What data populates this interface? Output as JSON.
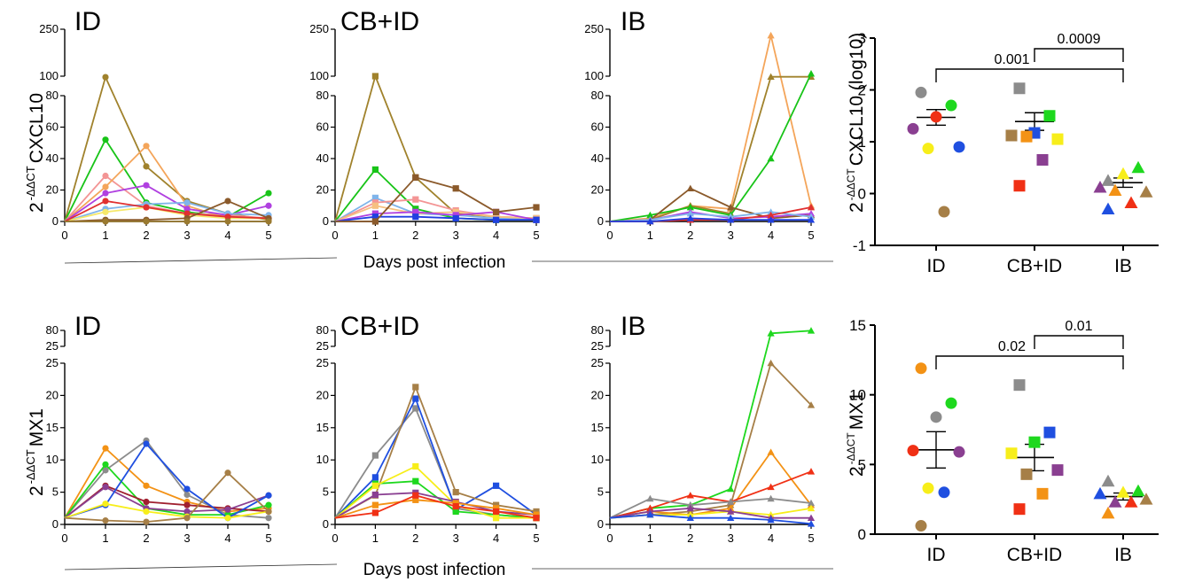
{
  "figure": {
    "xlabel": "Days post infection",
    "ylabel_top_prefix": "2",
    "ylabel_top_sup": "-ΔΔCT",
    "ylabel_top_gene": "CXCL10",
    "ylabel_bottom_gene": "MX1",
    "scatter_top_ylabel_suffix": "CXCL10 (log10)",
    "scatter_bottom_ylabel_suffix": "MX1"
  },
  "chart_data": [
    {
      "type": "line",
      "title": "ID",
      "ylabel": "2 -ΔΔCT CXCL10",
      "xlabel": "Days post infection",
      "x": [
        0,
        1,
        2,
        3,
        4,
        5
      ],
      "ylim": [
        0,
        250
      ],
      "y_ticks_lower": [
        0,
        20,
        40,
        60,
        80
      ],
      "y_ticks_upper": [
        100,
        250
      ],
      "marker": "circle",
      "series": [
        {
          "color": "#A0822C",
          "values": [
            0,
            97,
            35,
            13,
            5,
            1
          ]
        },
        {
          "color": "#18C418",
          "values": [
            0,
            52,
            12,
            6,
            3,
            18
          ]
        },
        {
          "color": "#F39595",
          "values": [
            0,
            29,
            10,
            5,
            4,
            2
          ]
        },
        {
          "color": "#F4A55A",
          "values": [
            0,
            22,
            48,
            10,
            2,
            2
          ]
        },
        {
          "color": "#B040E0",
          "values": [
            0,
            18,
            23,
            8,
            4,
            10
          ]
        },
        {
          "color": "#7FB4EA",
          "values": [
            0,
            8,
            11,
            12,
            5,
            4
          ]
        },
        {
          "color": "#F6E86A",
          "values": [
            0,
            6,
            9,
            4,
            2,
            2
          ]
        },
        {
          "color": "#E03030",
          "values": [
            0,
            13,
            9,
            5,
            3,
            2
          ]
        },
        {
          "color": "#8B5A2B",
          "values": [
            0,
            1,
            1,
            2,
            13,
            2
          ]
        },
        {
          "color": "#9A7A30",
          "values": [
            0,
            0,
            0,
            0,
            0,
            0
          ]
        }
      ]
    },
    {
      "type": "line",
      "title": "CB+ID",
      "ylabel": "2 -ΔΔCT CXCL10",
      "xlabel": "Days post infection",
      "x": [
        0,
        1,
        2,
        3,
        4,
        5
      ],
      "ylim": [
        0,
        250
      ],
      "y_ticks_lower": [
        0,
        20,
        40,
        60,
        80
      ],
      "y_ticks_upper": [
        100,
        250
      ],
      "marker": "square",
      "series": [
        {
          "color": "#A0822C",
          "values": [
            0,
            100,
            28,
            5,
            3,
            2
          ]
        },
        {
          "color": "#18C418",
          "values": [
            0,
            33,
            8,
            2,
            1,
            1
          ]
        },
        {
          "color": "#7FB4EA",
          "values": [
            0,
            15,
            5,
            4,
            2,
            1
          ]
        },
        {
          "color": "#F39595",
          "values": [
            0,
            12,
            14,
            7,
            3,
            2
          ]
        },
        {
          "color": "#F6C080",
          "values": [
            0,
            10,
            5,
            6,
            3,
            2
          ]
        },
        {
          "color": "#B040E0",
          "values": [
            0,
            5,
            6,
            4,
            6,
            1
          ]
        },
        {
          "color": "#2040E0",
          "values": [
            0,
            3,
            3,
            2,
            1,
            1
          ]
        },
        {
          "color": "#8B5A2B",
          "values": [
            0,
            0,
            28,
            21,
            6,
            9
          ]
        }
      ]
    },
    {
      "type": "line",
      "title": "IB",
      "ylabel": "2 -ΔΔCT CXCL10",
      "xlabel": "Days post infection",
      "x": [
        0,
        1,
        2,
        3,
        4,
        5
      ],
      "ylim": [
        0,
        250
      ],
      "y_ticks_lower": [
        0,
        20,
        40,
        60,
        80
      ],
      "y_ticks_upper": [
        100,
        250
      ],
      "marker": "triangle",
      "series": [
        {
          "color": "#F4A55A",
          "values": [
            0,
            2,
            10,
            8,
            230,
            10
          ]
        },
        {
          "color": "#A0822C",
          "values": [
            0,
            1,
            10,
            5,
            98,
            98
          ]
        },
        {
          "color": "#18C418",
          "values": [
            0,
            4,
            9,
            4,
            40,
            108
          ]
        },
        {
          "color": "#8B5A2B",
          "values": [
            0,
            1,
            21,
            9,
            2,
            4
          ]
        },
        {
          "color": "#B040E0",
          "values": [
            0,
            1,
            6,
            2,
            3,
            5
          ]
        },
        {
          "color": "#7FB4EA",
          "values": [
            0,
            1,
            5,
            3,
            6,
            3
          ]
        },
        {
          "color": "#E03030",
          "values": [
            0,
            0,
            1,
            1,
            4,
            9
          ]
        },
        {
          "color": "#2040E0",
          "values": [
            0,
            0,
            2,
            1,
            1,
            1
          ]
        }
      ]
    },
    {
      "type": "scatter",
      "title": "",
      "ylabel": "2 -ΔΔCT CXCL10 (log10)",
      "categories": [
        "ID",
        "CB+ID",
        "IB"
      ],
      "ylim": [
        -1,
        3
      ],
      "y_ticks": [
        -1,
        0,
        1,
        2,
        3
      ],
      "groups": [
        {
          "name": "ID",
          "marker": "circle",
          "mean": 1.47,
          "sem": 0.15,
          "points": [
            {
              "y": 1.95,
              "color": "#8C8C8C"
            },
            {
              "y": 1.7,
              "color": "#1ED81E"
            },
            {
              "y": 1.48,
              "color": "#F03015"
            },
            {
              "y": 1.25,
              "color": "#8A3F91"
            },
            {
              "y": 0.9,
              "color": "#1F4FE0"
            },
            {
              "y": 0.87,
              "color": "#F7EE1A"
            },
            {
              "y": -0.35,
              "color": "#A67F47"
            }
          ]
        },
        {
          "name": "CB+ID",
          "marker": "square",
          "mean": 1.39,
          "sem": 0.17,
          "points": [
            {
              "y": 2.03,
              "color": "#8C8C8C"
            },
            {
              "y": 1.5,
              "color": "#1ED81E"
            },
            {
              "y": 1.17,
              "color": "#1F4FE0"
            },
            {
              "y": 1.12,
              "color": "#A67F47"
            },
            {
              "y": 1.05,
              "color": "#F7EE1A"
            },
            {
              "y": 1.1,
              "color": "#F39215"
            },
            {
              "y": 0.65,
              "color": "#8A3F91"
            },
            {
              "y": 0.15,
              "color": "#F03015"
            }
          ]
        },
        {
          "name": "IB",
          "marker": "triangle",
          "mean": 0.21,
          "sem": 0.09,
          "points": [
            {
              "y": 0.25,
              "color": "#8C8C8C"
            },
            {
              "y": 0.5,
              "color": "#1ED81E"
            },
            {
              "y": 0.38,
              "color": "#F7EE1A"
            },
            {
              "y": 0.12,
              "color": "#8A3F91"
            },
            {
              "y": 0.03,
              "color": "#A67F47"
            },
            {
              "y": 0.06,
              "color": "#F39215"
            },
            {
              "y": -0.18,
              "color": "#F03015"
            },
            {
              "y": -0.3,
              "color": "#1F4FE0"
            }
          ]
        }
      ],
      "comparisons": [
        {
          "from": "ID",
          "to": "IB",
          "p": "0.001"
        },
        {
          "from": "CB+ID",
          "to": "IB",
          "p": "0.0009"
        }
      ]
    },
    {
      "type": "line",
      "title": "ID",
      "ylabel": "2 -ΔΔCT MX1",
      "xlabel": "Days post infection",
      "x": [
        0,
        1,
        2,
        3,
        4,
        5
      ],
      "ylim": [
        0,
        80
      ],
      "y_ticks_lower": [
        0,
        5,
        10,
        15,
        20,
        25
      ],
      "y_ticks_upper": [
        25,
        80
      ],
      "marker": "circle",
      "series": [
        {
          "color": "#F39215",
          "values": [
            1,
            11.8,
            6,
            3.5,
            2,
            2.5
          ]
        },
        {
          "color": "#8C8C8C",
          "values": [
            1,
            8.4,
            13,
            4.6,
            1.5,
            1
          ]
        },
        {
          "color": "#1ED81E",
          "values": [
            1,
            9.3,
            2.5,
            1.5,
            1.5,
            3
          ]
        },
        {
          "color": "#A0202F",
          "values": [
            1,
            6,
            3.5,
            3,
            2.5,
            2
          ]
        },
        {
          "color": "#8A3F91",
          "values": [
            1,
            5.8,
            2.5,
            2,
            2.3,
            4.5
          ]
        },
        {
          "color": "#1F4FE0",
          "values": [
            1,
            3,
            12.5,
            5.5,
            1,
            4.5
          ]
        },
        {
          "color": "#F7EE1A",
          "values": [
            1,
            3.2,
            2,
            1.2,
            1,
            2
          ]
        },
        {
          "color": "#A67F47",
          "values": [
            1,
            0.6,
            0.4,
            1,
            8,
            2
          ]
        }
      ]
    },
    {
      "type": "line",
      "title": "CB+ID",
      "ylabel": "2 -ΔΔCT MX1",
      "xlabel": "Days post infection",
      "x": [
        0,
        1,
        2,
        3,
        4,
        5
      ],
      "ylim": [
        0,
        80
      ],
      "y_ticks_lower": [
        0,
        5,
        10,
        15,
        20,
        25
      ],
      "y_ticks_upper": [
        25,
        80
      ],
      "marker": "square",
      "series": [
        {
          "color": "#8C8C8C",
          "values": [
            1,
            10.7,
            18,
            2.5,
            1.5,
            1
          ]
        },
        {
          "color": "#1F4FE0",
          "values": [
            1,
            7.3,
            19.5,
            2.3,
            6,
            1.5
          ]
        },
        {
          "color": "#A67F47",
          "values": [
            1,
            4.5,
            21.3,
            5,
            3,
            2
          ]
        },
        {
          "color": "#1ED81E",
          "values": [
            1,
            6.3,
            6.7,
            2,
            1.5,
            1
          ]
        },
        {
          "color": "#F7EE1A",
          "values": [
            1,
            6,
            9,
            3,
            1,
            1
          ]
        },
        {
          "color": "#8A3F91",
          "values": [
            1,
            4.6,
            4.9,
            3.5,
            2,
            1.5
          ]
        },
        {
          "color": "#F39215",
          "values": [
            1,
            3,
            3.8,
            3.3,
            2.5,
            1.5
          ]
        },
        {
          "color": "#F03015",
          "values": [
            1,
            1.8,
            4.5,
            2.8,
            2,
            1
          ]
        }
      ]
    },
    {
      "type": "line",
      "title": "IB",
      "ylabel": "2 -ΔΔCT MX1",
      "xlabel": "Days post infection",
      "x": [
        0,
        1,
        2,
        3,
        4,
        5
      ],
      "ylim": [
        0,
        80
      ],
      "y_ticks_lower": [
        0,
        5,
        10,
        15,
        20,
        25
      ],
      "y_ticks_upper": [
        25,
        80
      ],
      "marker": "triangle",
      "series": [
        {
          "color": "#1ED81E",
          "values": [
            1,
            2.5,
            3,
            5.5,
            70,
            79
          ]
        },
        {
          "color": "#A67F47",
          "values": [
            1,
            1.5,
            2,
            3,
            25,
            18.5
          ]
        },
        {
          "color": "#F39215",
          "values": [
            1,
            2,
            1.5,
            2.5,
            11.2,
            3
          ]
        },
        {
          "color": "#F03015",
          "values": [
            1,
            2.5,
            4.5,
            3.5,
            5.8,
            8.2
          ]
        },
        {
          "color": "#8C8C8C",
          "values": [
            1,
            4,
            3,
            3.5,
            4,
            3.3
          ]
        },
        {
          "color": "#F7EE1A",
          "values": [
            1,
            1.5,
            1.5,
            2,
            1.5,
            2.5
          ]
        },
        {
          "color": "#8A3F91",
          "values": [
            1,
            2,
            2.5,
            2,
            1,
            1
          ]
        },
        {
          "color": "#1F4FE0",
          "values": [
            1,
            1.5,
            1,
            1,
            0.7,
            0.1
          ]
        }
      ]
    },
    {
      "type": "scatter",
      "title": "",
      "ylabel": "2 -ΔΔCT MX1",
      "categories": [
        "ID",
        "CB+ID",
        "IB"
      ],
      "ylim": [
        0,
        15
      ],
      "y_ticks": [
        0,
        5,
        10,
        15
      ],
      "groups": [
        {
          "name": "ID",
          "marker": "circle",
          "mean": 6.05,
          "sem": 1.3,
          "points": [
            {
              "y": 11.9,
              "color": "#F39215"
            },
            {
              "y": 9.4,
              "color": "#1ED81E"
            },
            {
              "y": 8.4,
              "color": "#8C8C8C"
            },
            {
              "y": 6.0,
              "color": "#F03015"
            },
            {
              "y": 5.9,
              "color": "#8A3F91"
            },
            {
              "y": 3.3,
              "color": "#F7EE1A"
            },
            {
              "y": 3.0,
              "color": "#1F4FE0"
            },
            {
              "y": 0.6,
              "color": "#A67F47"
            }
          ]
        },
        {
          "name": "CB+ID",
          "marker": "square",
          "mean": 5.5,
          "sem": 0.95,
          "points": [
            {
              "y": 10.7,
              "color": "#8C8C8C"
            },
            {
              "y": 7.3,
              "color": "#1F4FE0"
            },
            {
              "y": 6.6,
              "color": "#1ED81E"
            },
            {
              "y": 5.8,
              "color": "#F7EE1A"
            },
            {
              "y": 4.6,
              "color": "#8A3F91"
            },
            {
              "y": 4.3,
              "color": "#A67F47"
            },
            {
              "y": 2.9,
              "color": "#F39215"
            },
            {
              "y": 1.8,
              "color": "#F03015"
            }
          ]
        },
        {
          "name": "IB",
          "marker": "triangle",
          "mean": 2.7,
          "sem": 0.25,
          "points": [
            {
              "y": 3.8,
              "color": "#8C8C8C"
            },
            {
              "y": 3.1,
              "color": "#1ED81E"
            },
            {
              "y": 3.0,
              "color": "#F7EE1A"
            },
            {
              "y": 2.9,
              "color": "#1F4FE0"
            },
            {
              "y": 2.5,
              "color": "#A67F47"
            },
            {
              "y": 2.3,
              "color": "#8A3F91"
            },
            {
              "y": 2.3,
              "color": "#F03015"
            },
            {
              "y": 1.5,
              "color": "#F39215"
            }
          ]
        }
      ],
      "comparisons": [
        {
          "from": "ID",
          "to": "IB",
          "p": "0.02"
        },
        {
          "from": "CB+ID",
          "to": "IB",
          "p": "0.01"
        }
      ]
    }
  ]
}
